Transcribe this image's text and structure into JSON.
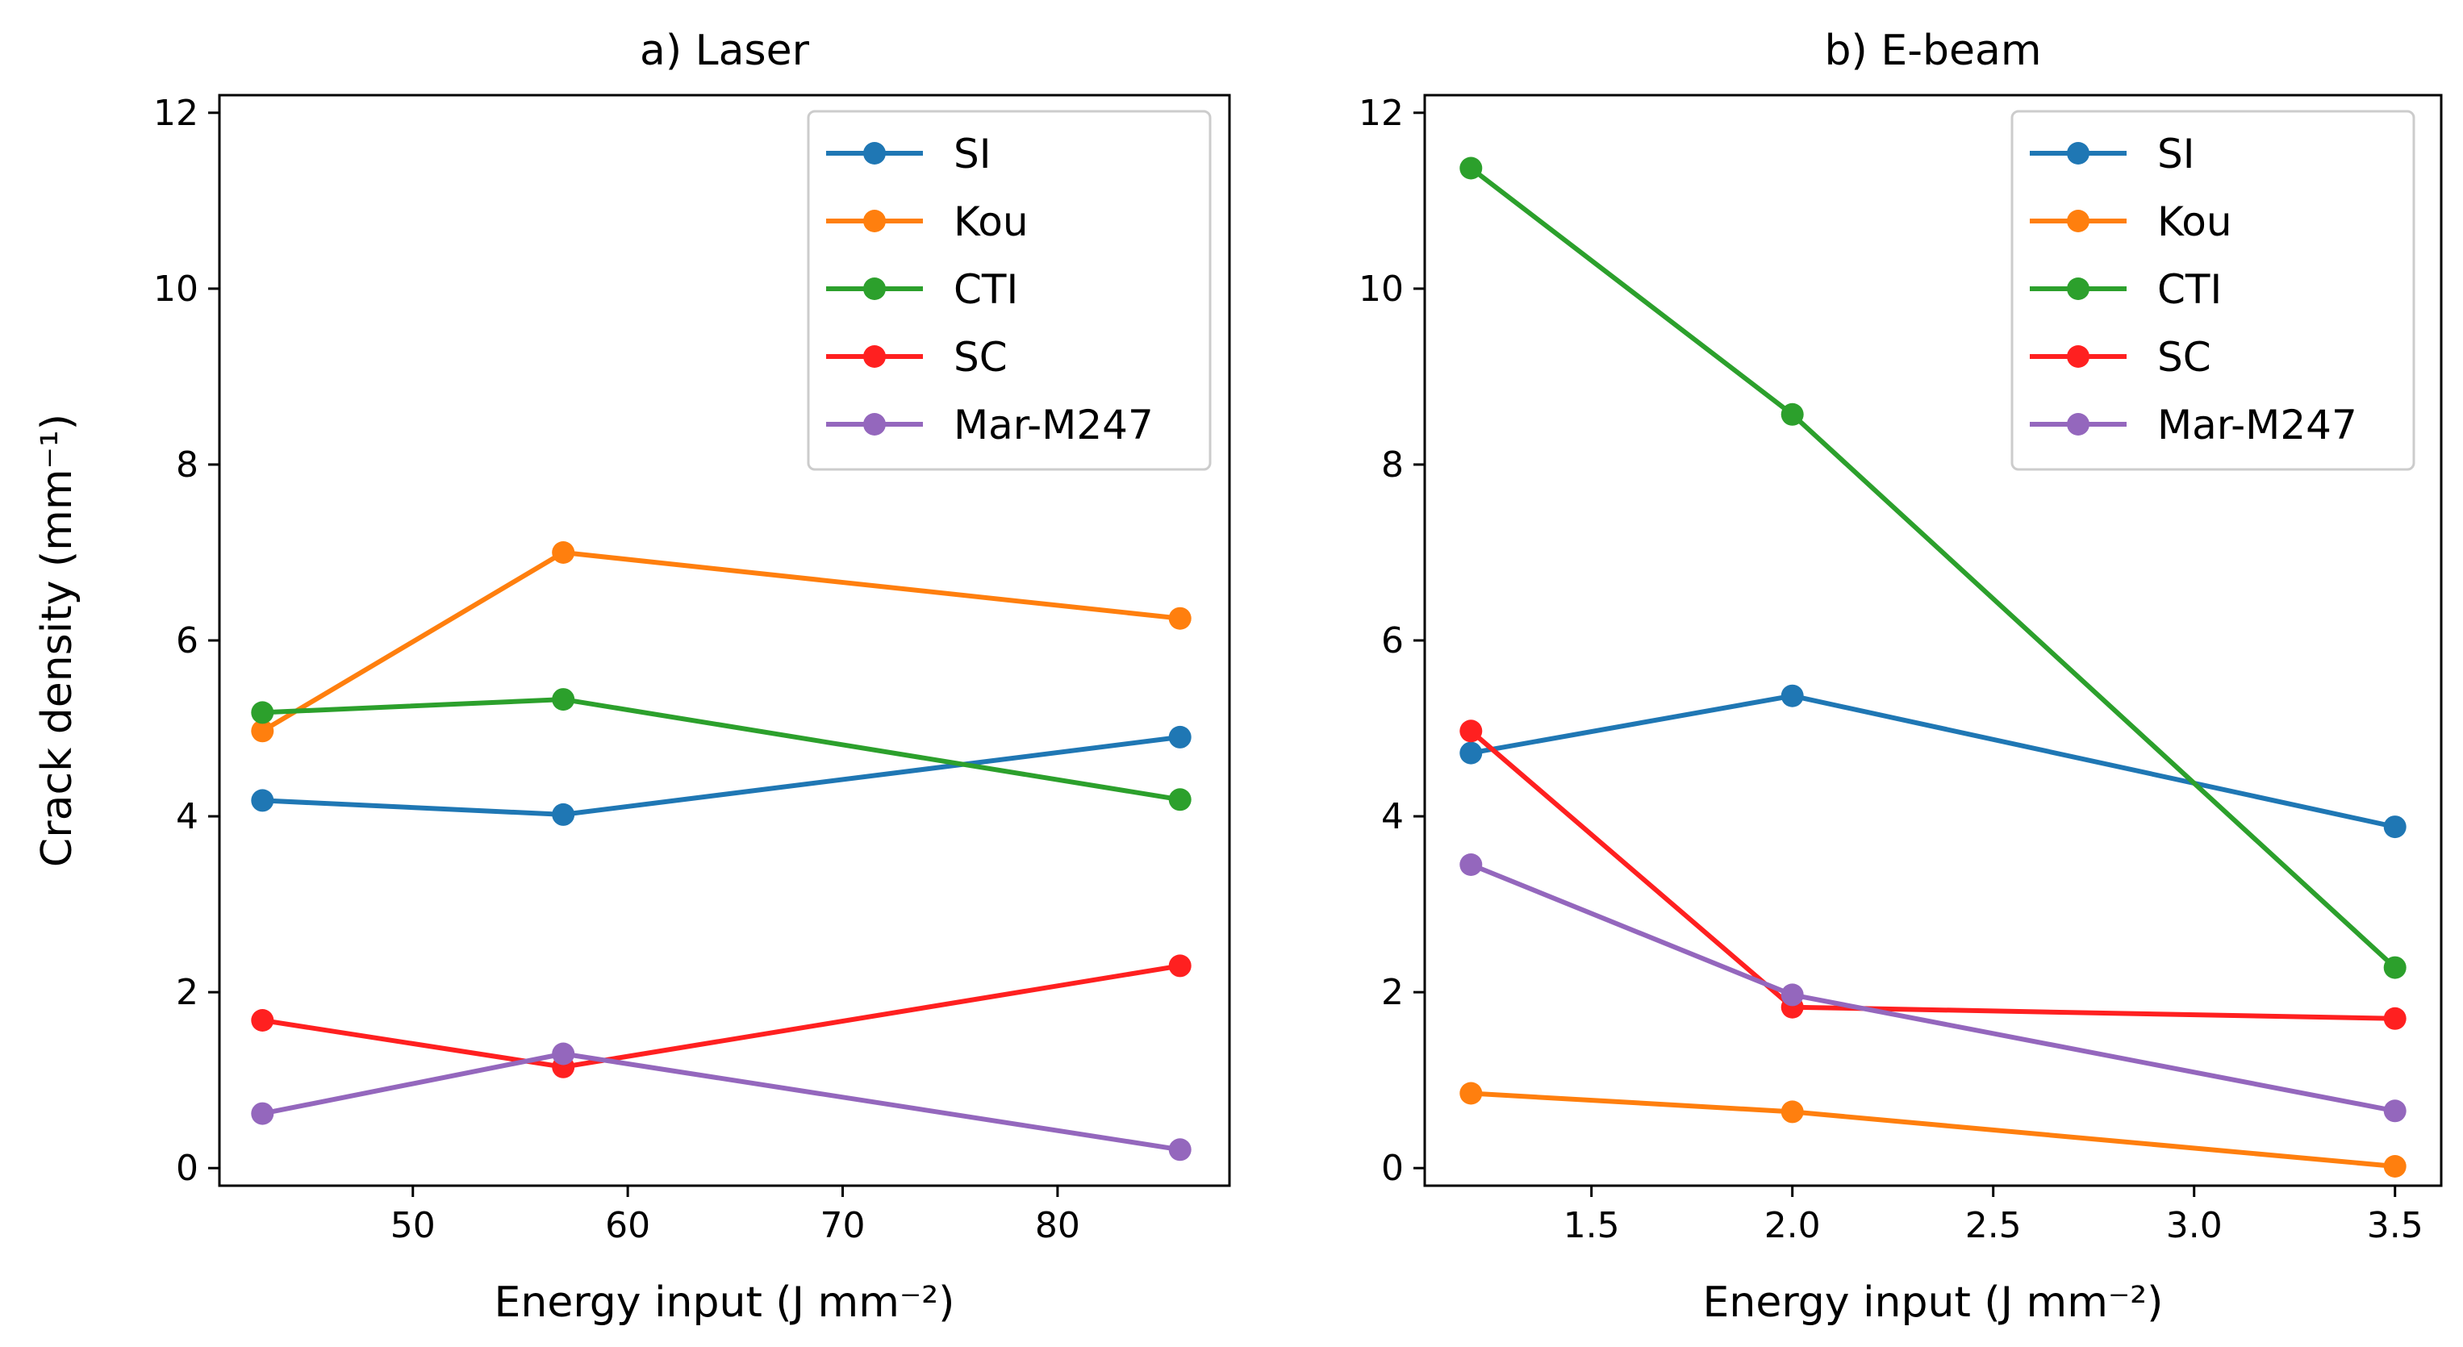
{
  "chart_data": [
    {
      "type": "line",
      "title": "a) Laser",
      "xlabel": "Energy input (J mm⁻²)",
      "ylabel": "Crack density (mm⁻¹)",
      "x": [
        43,
        57,
        85.7
      ],
      "xlim": [
        41,
        88
      ],
      "ylim": [
        -0.2,
        12.2
      ],
      "xticks": [
        50,
        60,
        70,
        80
      ],
      "xtick_labels": [
        "50",
        "60",
        "70",
        "80"
      ],
      "yticks": [
        0,
        2,
        4,
        6,
        8,
        10,
        12
      ],
      "ytick_labels": [
        "0",
        "2",
        "4",
        "6",
        "8",
        "10",
        "12"
      ],
      "legend_position": "upper right",
      "series": [
        {
          "name": "SI",
          "color": "#1f77b4",
          "values": [
            4.18,
            4.02,
            4.9
          ]
        },
        {
          "name": "Kou",
          "color": "#ff7f0e",
          "values": [
            4.97,
            7.0,
            6.25
          ]
        },
        {
          "name": "CTI",
          "color": "#2ca02c",
          "values": [
            5.18,
            5.33,
            4.19
          ]
        },
        {
          "name": "SC",
          "color": "#ff2020",
          "values": [
            1.68,
            1.15,
            2.3
          ]
        },
        {
          "name": "Mar-M247",
          "color": "#9467bd",
          "values": [
            0.62,
            1.3,
            0.21
          ]
        }
      ]
    },
    {
      "type": "line",
      "title": "b) E-beam",
      "xlabel": "Energy input (J mm⁻²)",
      "ylabel": "",
      "x": [
        1.2,
        2.0,
        3.5
      ],
      "xlim": [
        1.085,
        3.615
      ],
      "ylim": [
        -0.2,
        12.2
      ],
      "xticks": [
        1.5,
        2.0,
        2.5,
        3.0,
        3.5
      ],
      "xtick_labels": [
        "1.5",
        "2.0",
        "2.5",
        "3.0",
        "3.5"
      ],
      "yticks": [
        0,
        2,
        4,
        6,
        8,
        10,
        12
      ],
      "ytick_labels": [
        "0",
        "2",
        "4",
        "6",
        "8",
        "10",
        "12"
      ],
      "legend_position": "upper right",
      "series": [
        {
          "name": "SI",
          "color": "#1f77b4",
          "values": [
            4.72,
            5.37,
            3.88
          ]
        },
        {
          "name": "Kou",
          "color": "#ff7f0e",
          "values": [
            0.85,
            0.64,
            0.02
          ]
        },
        {
          "name": "CTI",
          "color": "#2ca02c",
          "values": [
            11.37,
            8.57,
            2.28
          ]
        },
        {
          "name": "SC",
          "color": "#ff2020",
          "values": [
            4.97,
            1.83,
            1.7
          ]
        },
        {
          "name": "Mar-M247",
          "color": "#9467bd",
          "values": [
            3.45,
            1.97,
            0.65
          ]
        }
      ]
    }
  ]
}
